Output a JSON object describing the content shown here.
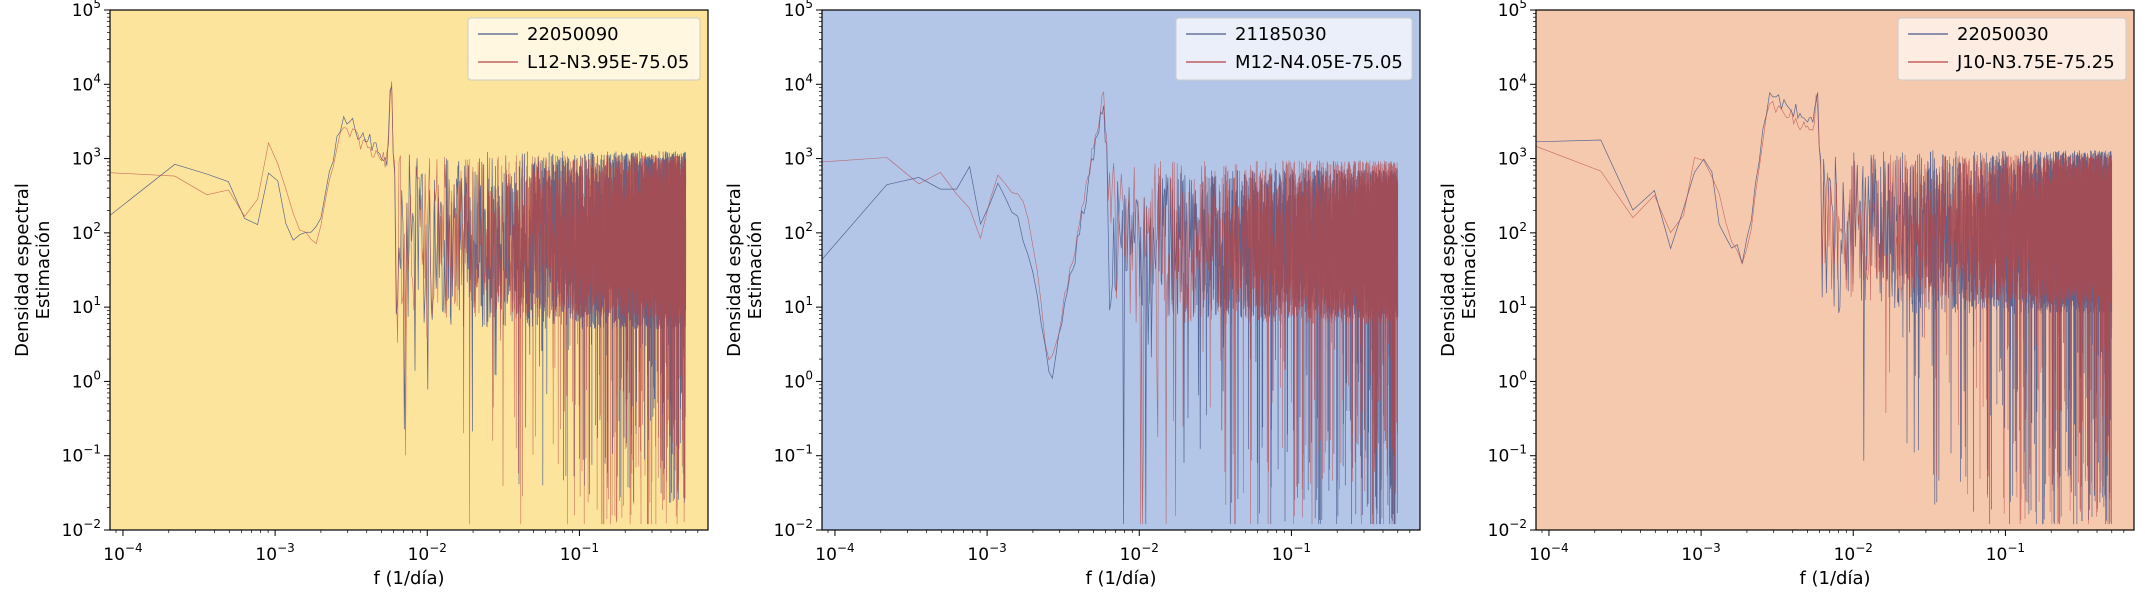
{
  "chart_data": [
    {
      "type": "line",
      "background_color": "#fde49c",
      "title": "",
      "xlabel": "f (1/día)",
      "ylabel_lines": [
        "Densidad espectral",
        "Estimación"
      ],
      "xscale": "log",
      "yscale": "log",
      "xlim": [
        8.22e-05,
        0.7
      ],
      "ylim": [
        0.01,
        100000
      ],
      "x_ticks": [
        "10^-4",
        "10^-3",
        "10^-2",
        "10^-1"
      ],
      "y_ticks": [
        "10^-2",
        "10^-1",
        "10^0",
        "10^1",
        "10^2",
        "10^3",
        "10^4",
        "10^5"
      ],
      "legend_position": "top-right",
      "series": [
        {
          "name": "22050090",
          "color": "#4a5a8c",
          "x_min": 8.22e-05,
          "x_max": 0.5,
          "x_step": 0.000137,
          "points": [
            [
              8.22e-05,
              160
            ],
            [
              0.000137,
              165
            ],
            [
              0.000274,
              1200
            ],
            [
              0.000411,
              420
            ],
            [
              0.000548,
              450
            ],
            [
              0.000685,
              60
            ],
            [
              0.000822,
              240
            ],
            [
              0.000959,
              1300
            ],
            [
              0.0011,
              200
            ],
            [
              0.00137,
              90
            ],
            [
              0.0019,
              110
            ],
            [
              0.0028,
              3500
            ],
            [
              0.0055,
              1000
            ],
            [
              0.0058,
              20000
            ],
            [
              0.006,
              800
            ]
          ],
          "base_level": 120,
          "noise_low": 0.8,
          "noise_high": 1.2
        },
        {
          "name": "L12-N3.95E-75.05",
          "color": "#b84545",
          "x_min": 8.22e-05,
          "x_max": 0.5,
          "x_step": 0.000137,
          "points": [
            [
              8.22e-05,
              600
            ],
            [
              0.000137,
              620
            ],
            [
              0.000274,
              750
            ],
            [
              0.000411,
              220
            ],
            [
              0.000548,
              700
            ],
            [
              0.000685,
              70
            ],
            [
              0.000822,
              1000
            ],
            [
              0.000959,
              1400
            ],
            [
              0.0011,
              500
            ],
            [
              0.00137,
              120
            ],
            [
              0.0019,
              90
            ],
            [
              0.0028,
              2500
            ],
            [
              0.0055,
              900
            ],
            [
              0.0058,
              21000
            ],
            [
              0.006,
              700
            ]
          ],
          "base_level": 130,
          "noise_low": 1.0,
          "noise_high": 1.1
        }
      ]
    },
    {
      "type": "line",
      "background_color": "#b4c6e7",
      "title": "",
      "xlabel": "f (1/día)",
      "ylabel_lines": [
        "Densidad espectral",
        "Estimación"
      ],
      "xscale": "log",
      "yscale": "log",
      "xlim": [
        8.22e-05,
        0.7
      ],
      "ylim": [
        0.01,
        100000
      ],
      "x_ticks": [
        "10^-4",
        "10^-3",
        "10^-2",
        "10^-1"
      ],
      "y_ticks": [
        "10^-2",
        "10^-1",
        "10^0",
        "10^1",
        "10^2",
        "10^3",
        "10^4",
        "10^5"
      ],
      "legend_position": "top-right",
      "series": [
        {
          "name": "21185030",
          "color": "#4a5a8c",
          "x_min": 8.22e-05,
          "x_max": 0.5,
          "x_step": 0.000137,
          "points": [
            [
              8.22e-05,
              40
            ],
            [
              0.000137,
              40
            ],
            [
              0.000274,
              1100
            ],
            [
              0.000411,
              260
            ],
            [
              0.000548,
              600
            ],
            [
              0.000685,
              300
            ],
            [
              0.000822,
              1000
            ],
            [
              0.000959,
              50
            ],
            [
              0.0011,
              600
            ],
            [
              0.0019,
              60
            ],
            [
              0.0026,
              0.8
            ],
            [
              0.0055,
              3000
            ],
            [
              0.0058,
              7000
            ],
            [
              0.006,
              1500
            ]
          ],
          "base_level": 100,
          "noise_low": 1.0,
          "noise_high": 1.0
        },
        {
          "name": "M12-N4.05E-75.05",
          "color": "#b84545",
          "x_min": 8.22e-05,
          "x_max": 0.5,
          "x_step": 0.000137,
          "points": [
            [
              8.22e-05,
              820
            ],
            [
              0.000137,
              820
            ],
            [
              0.000274,
              780
            ],
            [
              0.000411,
              250
            ],
            [
              0.000548,
              900
            ],
            [
              0.000685,
              250
            ],
            [
              0.000822,
              180
            ],
            [
              0.000959,
              40
            ],
            [
              0.0011,
              900
            ],
            [
              0.0019,
              150
            ],
            [
              0.0026,
              1.2
            ],
            [
              0.0055,
              4000
            ],
            [
              0.0058,
              9000
            ],
            [
              0.006,
              2000
            ]
          ],
          "base_level": 110,
          "noise_low": 1.0,
          "noise_high": 1.1
        }
      ]
    },
    {
      "type": "line",
      "background_color": "#f5c9ad",
      "title": "",
      "xlabel": "f (1/día)",
      "ylabel_lines": [
        "Densidad espectral",
        "Estimación"
      ],
      "xscale": "log",
      "yscale": "log",
      "xlim": [
        8.22e-05,
        0.7
      ],
      "ylim": [
        0.01,
        100000
      ],
      "x_ticks": [
        "10^-4",
        "10^-3",
        "10^-2",
        "10^-1"
      ],
      "y_ticks": [
        "10^-2",
        "10^-1",
        "10^0",
        "10^1",
        "10^2",
        "10^3",
        "10^4",
        "10^5"
      ],
      "legend_position": "top-right",
      "series": [
        {
          "name": "22050030",
          "color": "#4a5a8c",
          "x_min": 8.22e-05,
          "x_max": 0.5,
          "x_step": 0.000137,
          "points": [
            [
              8.22e-05,
              1500
            ],
            [
              0.000137,
              1500
            ],
            [
              0.000274,
              1800
            ],
            [
              0.000411,
              70
            ],
            [
              0.000548,
              700
            ],
            [
              0.000685,
              20
            ],
            [
              0.000822,
              1000
            ],
            [
              0.000959,
              800
            ],
            [
              0.0011,
              1100
            ],
            [
              0.00137,
              100
            ],
            [
              0.0019,
              40
            ],
            [
              0.0028,
              7000
            ],
            [
              0.0055,
              3000
            ],
            [
              0.0058,
              10000
            ],
            [
              0.006,
              1200
            ]
          ],
          "base_level": 150,
          "noise_low": 1.0,
          "noise_high": 1.1
        },
        {
          "name": "J10-N3.75E-75.25",
          "color": "#b84545",
          "x_min": 8.22e-05,
          "x_max": 0.5,
          "x_step": 0.000137,
          "points": [
            [
              8.22e-05,
              1300
            ],
            [
              0.000137,
              1300
            ],
            [
              0.000274,
              400
            ],
            [
              0.000411,
              120
            ],
            [
              0.000548,
              650
            ],
            [
              0.000685,
              25
            ],
            [
              0.000822,
              800
            ],
            [
              0.000959,
              1100
            ],
            [
              0.0011,
              900
            ],
            [
              0.00137,
              200
            ],
            [
              0.0019,
              30
            ],
            [
              0.0028,
              5000
            ],
            [
              0.0055,
              2500
            ],
            [
              0.0058,
              9000
            ],
            [
              0.006,
              1000
            ]
          ],
          "base_level": 160,
          "noise_low": 1.0,
          "noise_high": 1.0
        }
      ]
    }
  ]
}
